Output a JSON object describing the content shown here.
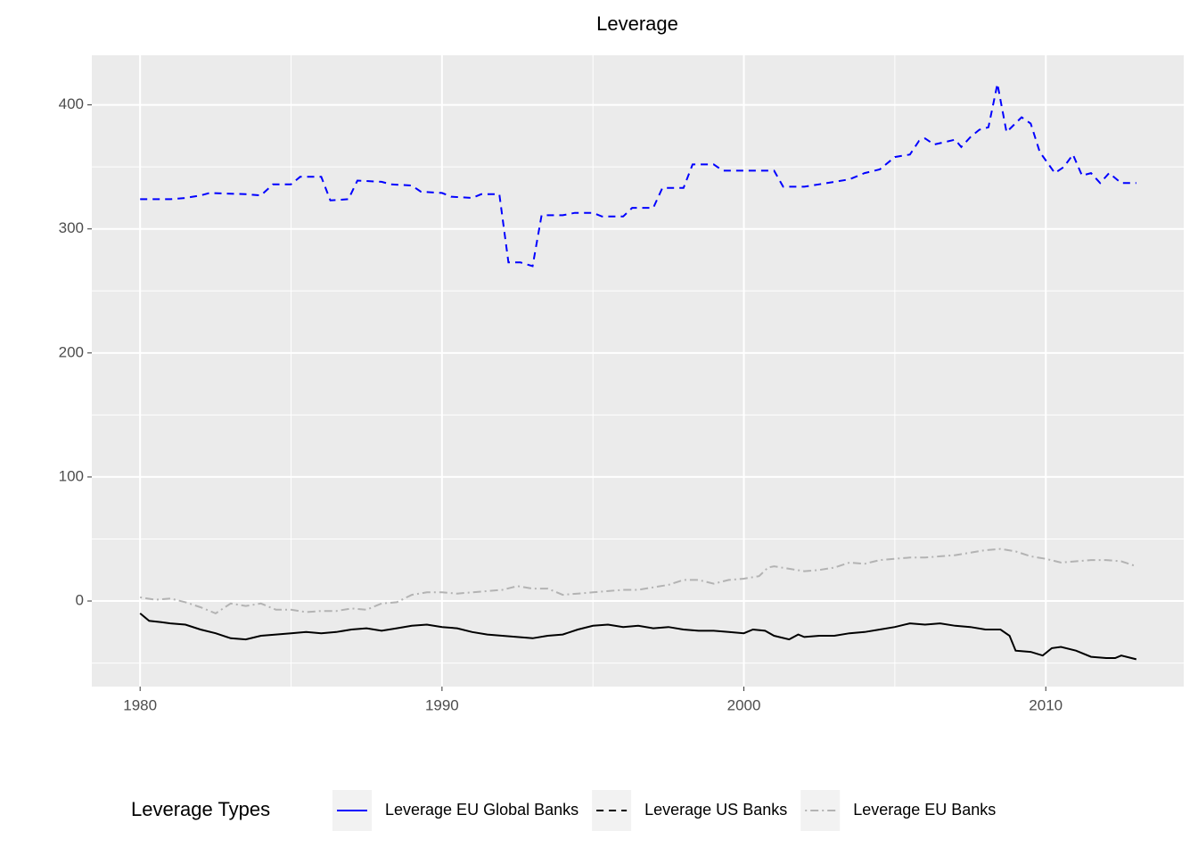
{
  "chart_data": {
    "type": "line",
    "title": "Leverage",
    "legend_title": "Leverage Types",
    "xlim": [
      1978.4,
      2014.57
    ],
    "xticks": [
      1980,
      1990,
      2000,
      2010
    ],
    "ylim": [
      -69,
      440
    ],
    "yticks": [
      0,
      100,
      200,
      300,
      400
    ],
    "grid": true,
    "legend_position": "bottom",
    "legend_linetypes": [
      "solid",
      "dashed",
      "dotdash"
    ],
    "series": [
      {
        "name": "Leverage EU Global Banks",
        "color": "#0000ff",
        "linetype": "dashed",
        "x": [
          1980,
          1981,
          1981.5,
          1982,
          1982.3,
          1983.5,
          1984,
          1984.4,
          1985,
          1985.3,
          1986,
          1986.3,
          1986.9,
          1987.2,
          1988,
          1988.3,
          1989,
          1989.3,
          1990,
          1990.3,
          1991,
          1991.3,
          1991.9,
          1992.2,
          1992.6,
          1993,
          1993.3,
          1994,
          1994.4,
          1995,
          1995.3,
          1996,
          1996.3,
          1997,
          1997.3,
          1998,
          1998.3,
          1999,
          1999.3,
          2000.5,
          2001,
          2001.3,
          2002,
          2002.5,
          2003,
          2003.5,
          2004,
          2004.5,
          2005,
          2005.5,
          2005.8,
          2006,
          2006.3,
          2007,
          2007.2,
          2007.5,
          2007.8,
          2008.1,
          2008.4,
          2008.7,
          2009.2,
          2009.5,
          2009.8,
          2010.3,
          2010.6,
          2010.9,
          2011.2,
          2011.5,
          2011.8,
          2012.1,
          2012.5,
          2013
        ],
        "values": [
          324,
          324,
          325,
          327,
          329,
          328,
          327,
          336,
          336,
          342,
          342,
          323,
          324,
          339,
          338,
          336,
          335,
          330,
          329,
          326,
          325,
          328,
          328,
          273,
          273,
          270,
          311,
          311,
          313,
          313,
          310,
          310,
          317,
          317,
          333,
          333,
          352,
          352,
          347,
          347,
          347,
          334,
          334,
          336,
          338,
          340,
          345,
          348,
          358,
          360,
          371,
          373,
          368,
          372,
          366,
          374,
          380,
          382,
          417,
          378,
          390,
          385,
          362,
          345,
          350,
          360,
          343,
          345,
          337,
          345,
          337,
          337
        ]
      },
      {
        "name": "Leverage US Banks",
        "color": "#000000",
        "linetype": "solid",
        "x": [
          1980,
          1980.3,
          1980.7,
          1981,
          1981.5,
          1982,
          1982.5,
          1983,
          1983.5,
          1984,
          1984.5,
          1985,
          1985.5,
          1986,
          1986.5,
          1987,
          1987.5,
          1988,
          1988.5,
          1989,
          1989.5,
          1990,
          1990.5,
          1991,
          1991.5,
          1992,
          1992.5,
          1993,
          1993.5,
          1994,
          1994.5,
          1995,
          1995.5,
          1996,
          1996.5,
          1997,
          1997.5,
          1998,
          1998.5,
          1999,
          1999.5,
          2000,
          2000.3,
          2000.7,
          2001,
          2001.5,
          2001.8,
          2002,
          2002.5,
          2003,
          2003.5,
          2004,
          2004.5,
          2005,
          2005.5,
          2006,
          2006.5,
          2007,
          2007.5,
          2008,
          2008.5,
          2008.8,
          2009,
          2009.5,
          2009.9,
          2010.2,
          2010.5,
          2011,
          2011.5,
          2012,
          2012.3,
          2012.5,
          2013
        ],
        "values": [
          -10,
          -16,
          -17,
          -18,
          -19,
          -23,
          -26,
          -30,
          -31,
          -28,
          -27,
          -26,
          -25,
          -26,
          -25,
          -23,
          -22,
          -24,
          -22,
          -20,
          -19,
          -21,
          -22,
          -25,
          -27,
          -28,
          -29,
          -30,
          -28,
          -27,
          -23,
          -20,
          -19,
          -21,
          -20,
          -22,
          -21,
          -23,
          -24,
          -24,
          -25,
          -26,
          -23,
          -24,
          -28,
          -31,
          -27,
          -29,
          -28,
          -28,
          -26,
          -25,
          -23,
          -21,
          -18,
          -19,
          -18,
          -20,
          -21,
          -23,
          -23,
          -28,
          -40,
          -41,
          -44,
          -38,
          -37,
          -40,
          -45,
          -46,
          -46,
          -44,
          -47
        ]
      },
      {
        "name": "Leverage EU Banks",
        "color": "#b3b3b3",
        "linetype": "dotdash",
        "x": [
          1980,
          1980.5,
          1981,
          1981.5,
          1982,
          1982.5,
          1983,
          1983.5,
          1984,
          1984.5,
          1985,
          1985.5,
          1986,
          1986.5,
          1987,
          1987.5,
          1988,
          1988.5,
          1989,
          1989.5,
          1990,
          1990.5,
          1991,
          1991.5,
          1992,
          1992.5,
          1993,
          1993.5,
          1994,
          1994.5,
          1995,
          1995.5,
          1996,
          1996.5,
          1997,
          1997.5,
          1998,
          1998.5,
          1999,
          1999.5,
          2000,
          2000.5,
          2000.8,
          2001,
          2001.5,
          2002,
          2002.5,
          2003,
          2003.5,
          2004,
          2004.5,
          2005,
          2005.5,
          2006,
          2006.5,
          2007,
          2007.5,
          2008,
          2008.5,
          2009,
          2009.5,
          2010,
          2010.5,
          2011,
          2011.5,
          2012,
          2012.5,
          2013
        ],
        "values": [
          3,
          1,
          2,
          -1,
          -5,
          -10,
          -2,
          -4,
          -2,
          -7,
          -7,
          -9,
          -8,
          -8,
          -6,
          -7,
          -2,
          -1,
          5,
          7,
          7,
          6,
          7,
          8,
          9,
          12,
          10,
          10,
          5,
          6,
          7,
          8,
          9,
          9,
          11,
          13,
          17,
          17,
          14,
          17,
          18,
          20,
          27,
          28,
          26,
          24,
          25,
          27,
          31,
          30,
          33,
          34,
          35,
          35,
          36,
          37,
          39,
          41,
          42,
          40,
          36,
          34,
          31,
          32,
          33,
          33,
          32,
          28
        ]
      }
    ]
  }
}
